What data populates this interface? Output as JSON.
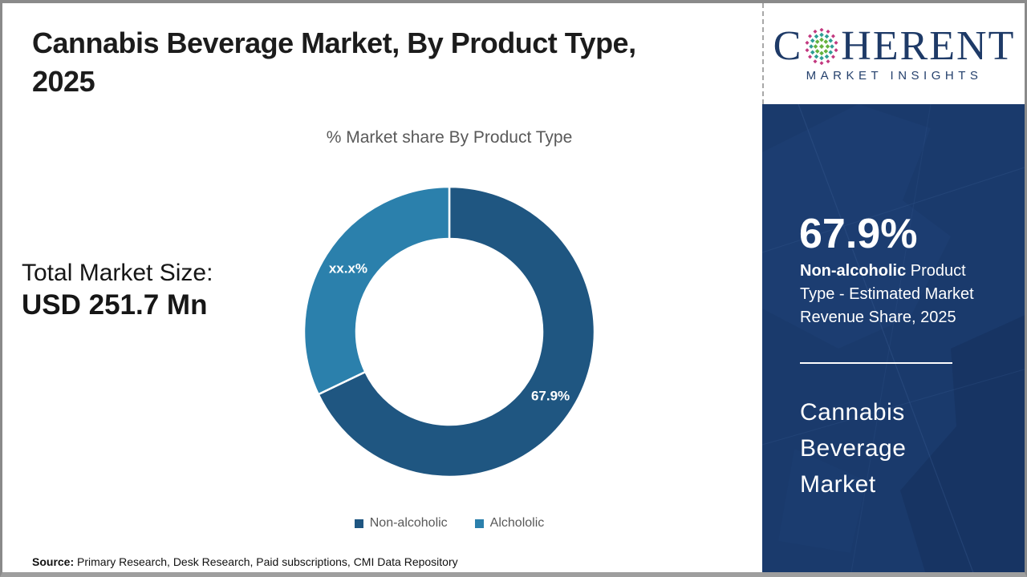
{
  "header": {
    "title": "Cannabis Beverage Market, By Product Type, 2025",
    "title_lines": [
      "Cannabis Beverage Market, By Product Type,",
      "2025"
    ]
  },
  "chart_section": {
    "subtitle": "% Market share By Product Type"
  },
  "total_market": {
    "label": "Total Market Size:",
    "value": "USD 251.7 Mn"
  },
  "chart_data": {
    "type": "pie",
    "subtype": "donut",
    "title": "% Market share By Product Type",
    "categories": [
      "Non-alcoholic",
      "Alchololic"
    ],
    "values": [
      67.9,
      32.1
    ],
    "slice_labels": [
      "67.9%",
      "xx.x%"
    ],
    "colors": [
      "#1f5681",
      "#2b80ac"
    ],
    "start_angle_deg": 0,
    "legend_position": "bottom"
  },
  "source": {
    "label": "Source:",
    "text": "Primary Research, Desk Research, Paid subscriptions, CMI Data Repository"
  },
  "logo": {
    "name_start": "C",
    "name_end": "HERENT",
    "tagline": "MARKET INSIGHTS"
  },
  "sidebar": {
    "stat_value": "67.9%",
    "stat_desc_bold": "Non-alcoholic",
    "stat_desc_rest": " Product Type - Estimated Market Revenue Share, 2025",
    "market_name": "Cannabis Beverage Market"
  }
}
